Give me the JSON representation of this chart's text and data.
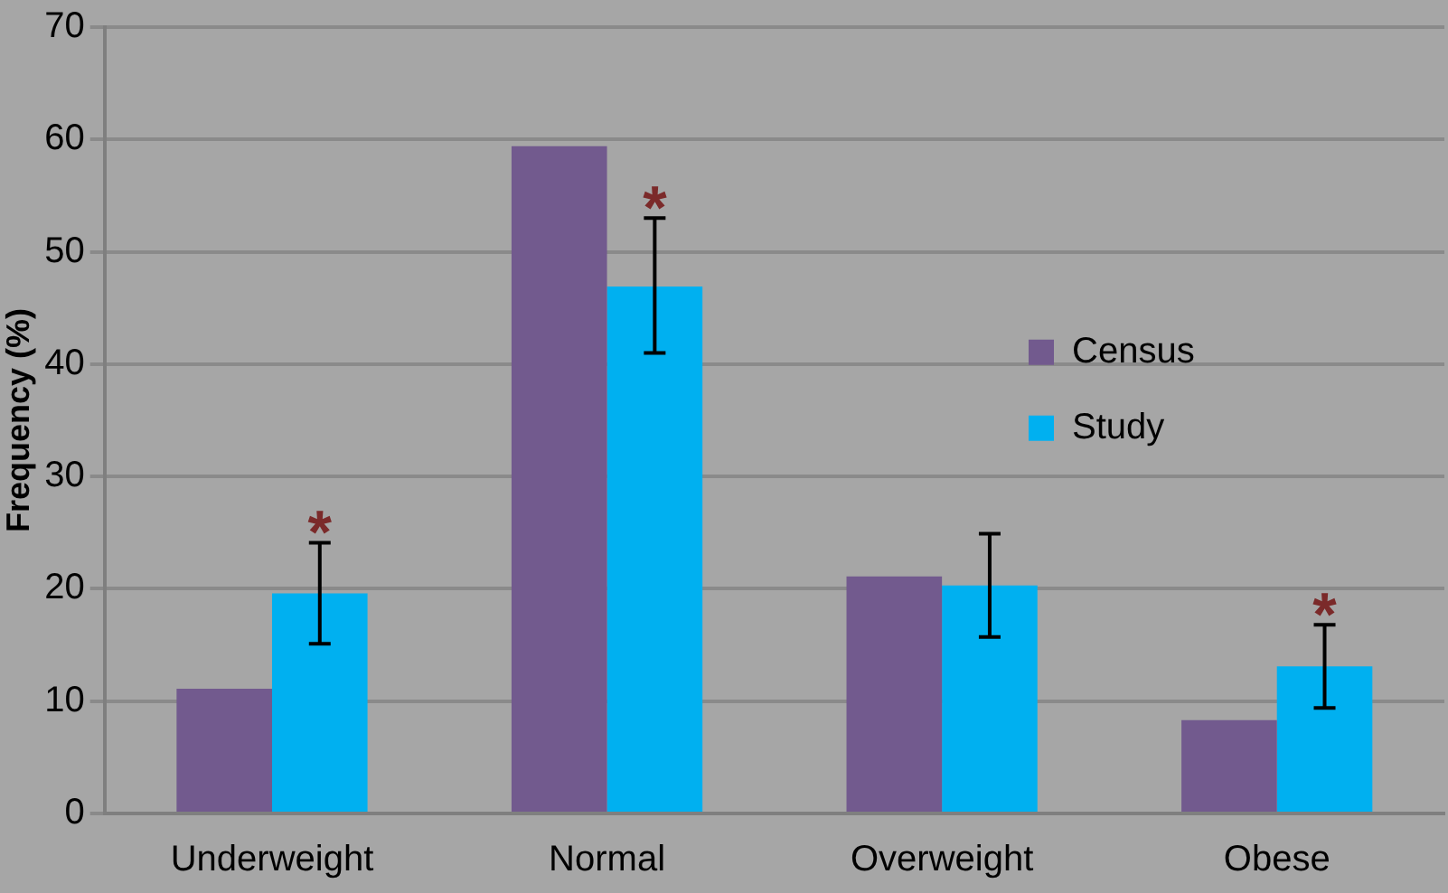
{
  "chart_data": {
    "type": "bar",
    "ylabel": "Frequency (%)",
    "categories": [
      "Underweight",
      "Normal",
      "Overweight",
      "Obese"
    ],
    "series": [
      {
        "name": "Census",
        "color": "#725a8e",
        "values": [
          11.1,
          59.4,
          21.1,
          8.3
        ]
      },
      {
        "name": "Study",
        "color": "#00b0f0",
        "values": [
          19.6,
          46.9,
          20.3,
          13.1
        ],
        "errors": [
          [
            15.1,
            24.1
          ],
          [
            41.0,
            53.0
          ],
          [
            15.7,
            24.9
          ],
          [
            9.4,
            16.8
          ]
        ]
      }
    ],
    "ylim": [
      0,
      70
    ],
    "yticks": [
      0,
      10,
      20,
      30,
      40,
      50,
      60,
      70
    ],
    "grid": "y",
    "legend": "right",
    "annotations": [
      {
        "text": "*",
        "x": "Underweight",
        "y": 19.6
      },
      {
        "text": "*",
        "x": "Normal",
        "y": 46.9
      },
      {
        "text": "*",
        "x": "Obese",
        "y": 13.1
      }
    ]
  }
}
